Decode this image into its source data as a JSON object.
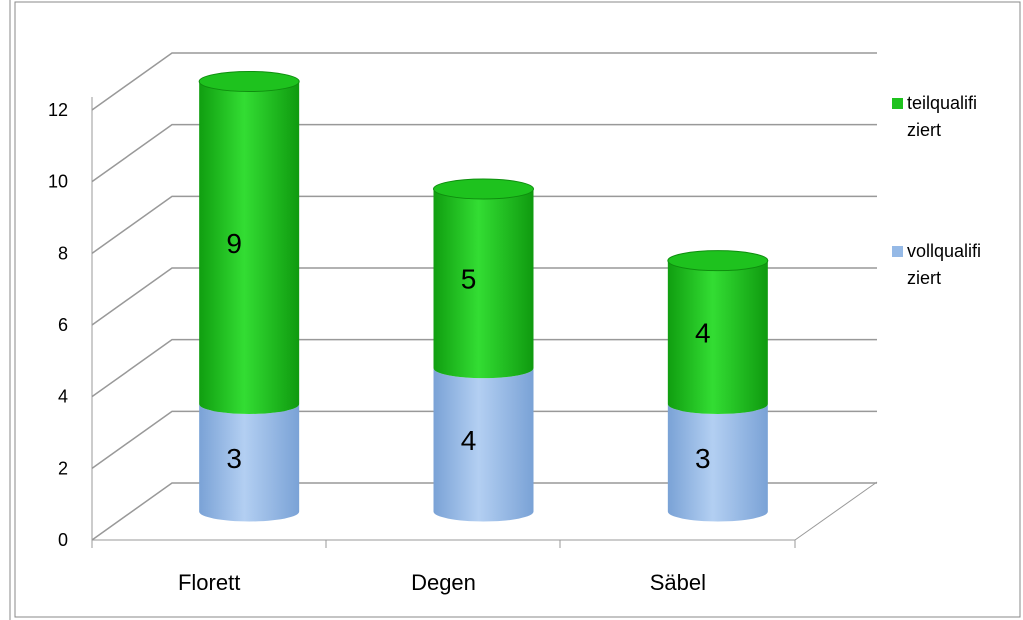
{
  "chart_data": {
    "type": "bar",
    "stacked": true,
    "categories": [
      "Florett",
      "Degen",
      "Säbel"
    ],
    "series": [
      {
        "name": "vollqualifiziert",
        "color": "#95b9e6",
        "values": [
          3,
          4,
          3
        ]
      },
      {
        "name": "teilqualifiziert",
        "color": "#1ec21e",
        "values": [
          9,
          5,
          4
        ]
      }
    ],
    "ylim": [
      0,
      12
    ],
    "yticks": [
      0,
      2,
      4,
      6,
      8,
      10,
      12
    ],
    "grid": true,
    "legend": "right"
  }
}
